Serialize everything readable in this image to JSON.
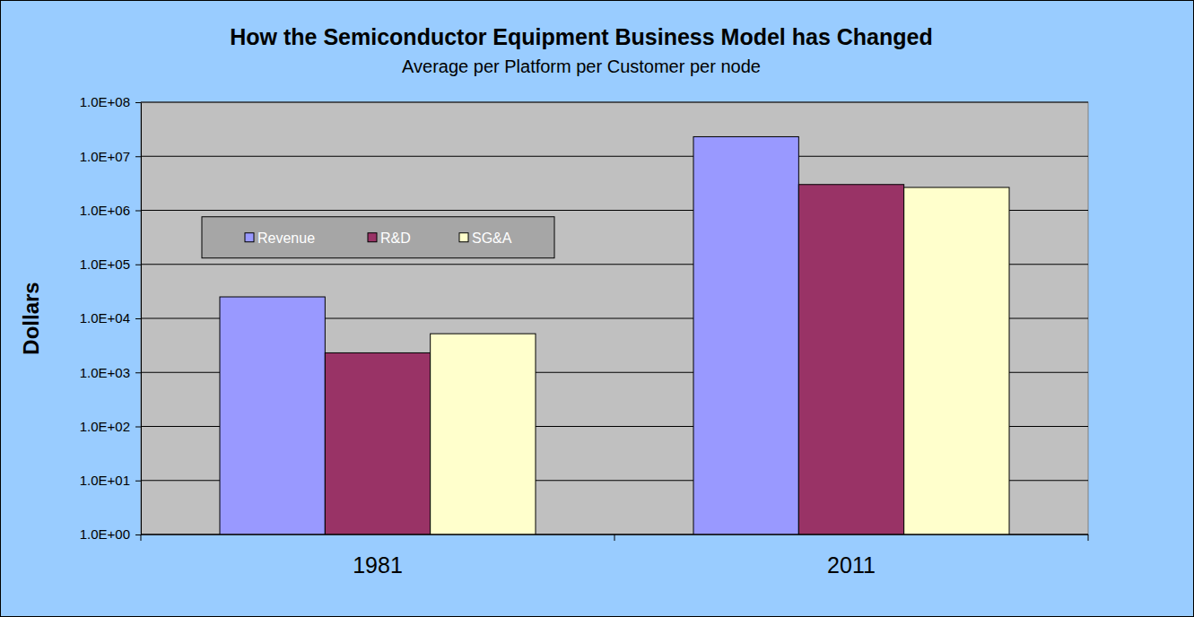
{
  "chart_data": {
    "type": "bar",
    "title": "How the Semiconductor Equipment Business Model has Changed",
    "subtitle": "Average per Platform per Customer per node",
    "y_label": "Dollars",
    "categories": [
      "1981",
      "2011"
    ],
    "series": [
      {
        "name": "Revenue",
        "color": "#9999FF",
        "values": [
          25000,
          23000000
        ]
      },
      {
        "name": "R&D",
        "color": "#993366",
        "values": [
          2300,
          3000000
        ]
      },
      {
        "name": "SG&A",
        "color": "#FFFFCC",
        "values": [
          5200,
          2650000
        ]
      }
    ],
    "log": "y",
    "ylim": [
      1,
      100000000
    ],
    "yticks": [
      {
        "value": 1,
        "label": "1.0E+00"
      },
      {
        "value": 10,
        "label": "1.0E+01"
      },
      {
        "value": 100,
        "label": "1.0E+02"
      },
      {
        "value": 1000,
        "label": "1.0E+03"
      },
      {
        "value": 10000,
        "label": "1.0E+04"
      },
      {
        "value": 100000,
        "label": "1.0E+05"
      },
      {
        "value": 1000000,
        "label": "1.0E+06"
      },
      {
        "value": 10000000,
        "label": "1.0E+07"
      },
      {
        "value": 100000000,
        "label": "1.0E+08"
      }
    ],
    "grid": true,
    "legend": "left"
  }
}
